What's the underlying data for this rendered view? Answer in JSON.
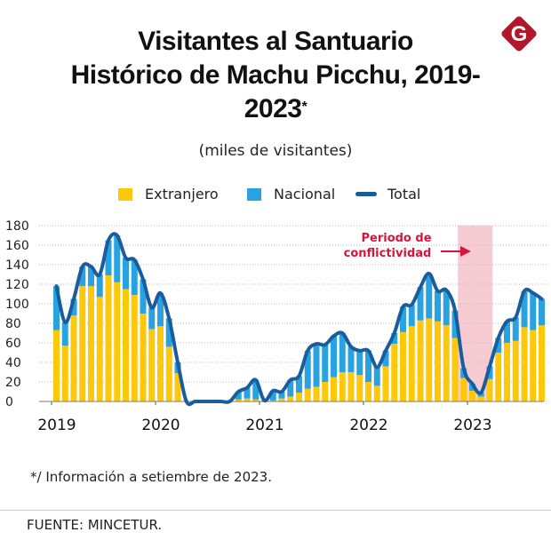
{
  "header": {
    "title_lines": [
      "Visitantes al Santuario",
      "Histórico de Machu Picchu, 2019-",
      "2023"
    ],
    "title_asterisk": "*",
    "subtitle": "(miles de visitantes)",
    "logo_letter": "G"
  },
  "colors": {
    "extranjero": "#fdc80c",
    "nacional": "#29a3df",
    "total": "#1a5d9e",
    "highlight": "#f7cbd2",
    "annotation": "#d4163c",
    "logo": "#b0172b",
    "grid": "#bbbbbb"
  },
  "legend": {
    "extranjero": "Extranjero",
    "nacional": "Nacional",
    "total": "Total"
  },
  "footer": {
    "footnote": "*/ Información a setiembre de 2023.",
    "source": "FUENTE: MINCETUR."
  },
  "chart_data": {
    "type": "bar",
    "stacked": true,
    "title": "Visitantes al Santuario Histórico de Machu Picchu, 2019-2023*",
    "subtitle": "(miles de visitantes)",
    "xlabel": "",
    "ylabel": "miles de visitantes",
    "ylim": [
      0,
      180
    ],
    "yticks": [
      0,
      20,
      40,
      60,
      80,
      100,
      120,
      140,
      160,
      180
    ],
    "xtick_labels": [
      "2019",
      "2020",
      "2021",
      "2022",
      "2023"
    ],
    "grid": true,
    "legend_position": "top-center",
    "start": "2019-01",
    "end": "2023-09",
    "categories": [
      "2019-01",
      "2019-02",
      "2019-03",
      "2019-04",
      "2019-05",
      "2019-06",
      "2019-07",
      "2019-08",
      "2019-09",
      "2019-10",
      "2019-11",
      "2019-12",
      "2020-01",
      "2020-02",
      "2020-03",
      "2020-04",
      "2020-05",
      "2020-06",
      "2020-07",
      "2020-08",
      "2020-09",
      "2020-10",
      "2020-11",
      "2020-12",
      "2021-01",
      "2021-02",
      "2021-03",
      "2021-04",
      "2021-05",
      "2021-06",
      "2021-07",
      "2021-08",
      "2021-09",
      "2021-10",
      "2021-11",
      "2021-12",
      "2022-01",
      "2022-02",
      "2022-03",
      "2022-04",
      "2022-05",
      "2022-06",
      "2022-07",
      "2022-08",
      "2022-09",
      "2022-10",
      "2022-11",
      "2022-12",
      "2023-01",
      "2023-02",
      "2023-03",
      "2023-04",
      "2023-05",
      "2023-06",
      "2023-07",
      "2023-08",
      "2023-09"
    ],
    "series": [
      {
        "name": "Extranjero",
        "type": "bar",
        "values": [
          73,
          57,
          88,
          118,
          118,
          107,
          129,
          122,
          115,
          109,
          90,
          74,
          77,
          56,
          29,
          0,
          0,
          0,
          0,
          0,
          0,
          2,
          3,
          2,
          0,
          1,
          3,
          5,
          9,
          13,
          15,
          20,
          25,
          30,
          30,
          27,
          20,
          16,
          36,
          59,
          71,
          77,
          83,
          85,
          82,
          78,
          65,
          24,
          11,
          5,
          23,
          50,
          60,
          62,
          76,
          73,
          78
        ]
      },
      {
        "name": "Nacional",
        "type": "bar",
        "values": [
          45,
          24,
          17,
          20,
          20,
          23,
          36,
          48,
          32,
          36,
          35,
          22,
          34,
          29,
          11,
          0,
          0,
          0,
          0,
          0,
          0,
          8,
          11,
          20,
          1,
          10,
          7,
          17,
          17,
          39,
          44,
          38,
          42,
          40,
          26,
          25,
          32,
          19,
          16,
          11,
          26,
          22,
          34,
          46,
          31,
          36,
          28,
          10,
          7,
          4,
          13,
          15,
          22,
          24,
          37,
          38,
          27
        ]
      },
      {
        "name": "Total",
        "type": "line",
        "values": [
          118,
          81,
          105,
          138,
          138,
          130,
          165,
          170,
          147,
          145,
          125,
          96,
          111,
          85,
          40,
          0,
          0,
          0,
          0,
          0,
          0,
          10,
          14,
          22,
          1,
          11,
          10,
          22,
          26,
          52,
          59,
          58,
          67,
          70,
          56,
          52,
          52,
          35,
          52,
          70,
          97,
          99,
          117,
          131,
          113,
          114,
          93,
          34,
          18,
          9,
          36,
          65,
          82,
          86,
          113,
          111,
          105
        ]
      }
    ],
    "annotations": [
      {
        "text": [
          "Periodo de",
          "conflictividad"
        ],
        "highlight_from": "2022-12",
        "highlight_to": "2023-03"
      }
    ]
  }
}
